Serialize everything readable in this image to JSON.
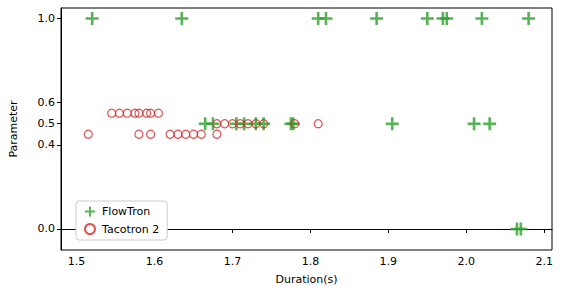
{
  "chart_data": {
    "type": "scatter",
    "x_label": "Duration(s)",
    "y_label": "Parameter",
    "xlim": [
      1.48,
      2.11
    ],
    "ylim": [
      -0.1,
      1.05
    ],
    "xticks": [
      1.5,
      1.6,
      1.7,
      1.8,
      1.9,
      {
        "value": 2,
        "label": "2.0"
      },
      2.1
    ],
    "yticks": [
      {
        "value": 0,
        "label": "0.0"
      },
      0.4,
      0.5,
      0.6,
      {
        "value": 1,
        "label": "1.0"
      }
    ],
    "legend": "lower left",
    "grid": false,
    "series": [
      {
        "name": "FlowTron",
        "color": "#2ca02c",
        "marker": "plus",
        "x": [
          1.52,
          1.635,
          1.81,
          1.82,
          1.885,
          1.95,
          1.97,
          1.975,
          2.02,
          2.08,
          1.665,
          1.675,
          1.705,
          1.715,
          1.73,
          1.74,
          1.775,
          1.778,
          1.905,
          2.01,
          2.03,
          2.065,
          2.07
        ],
        "values": [
          1,
          1,
          1,
          1,
          1,
          1,
          1,
          1,
          1,
          1,
          0.5,
          0.5,
          0.5,
          0.5,
          0.5,
          0.5,
          0.5,
          0.5,
          0.5,
          0.5,
          0.5,
          0,
          0
        ]
      },
      {
        "name": "Tacotron 2",
        "color": "#d62728",
        "marker": "circle",
        "x": [
          1.545,
          1.555,
          1.565,
          1.575,
          1.58,
          1.59,
          1.595,
          1.605,
          1.515,
          1.58,
          1.595,
          1.62,
          1.63,
          1.64,
          1.65,
          1.66,
          1.68,
          1.68,
          1.69,
          1.7,
          1.71,
          1.72,
          1.73,
          1.74,
          1.78,
          1.81
        ],
        "values": [
          0.55,
          0.55,
          0.55,
          0.55,
          0.55,
          0.55,
          0.55,
          0.55,
          0.45,
          0.45,
          0.45,
          0.45,
          0.45,
          0.45,
          0.45,
          0.45,
          0.45,
          0.5,
          0.5,
          0.5,
          0.5,
          0.5,
          0.5,
          0.5,
          0.5,
          0.5
        ]
      }
    ]
  }
}
